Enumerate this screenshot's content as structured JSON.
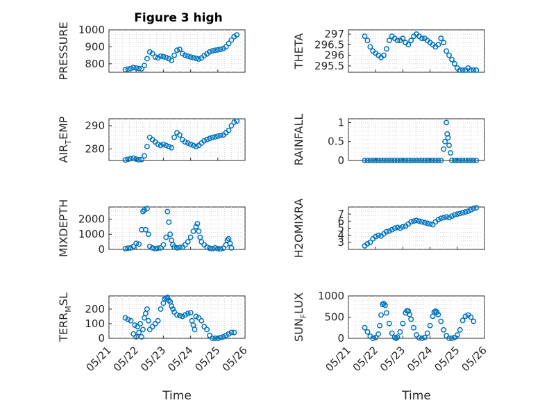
{
  "figure": {
    "title": "Figure 3 high",
    "marker_color": "#0072BD",
    "xtick_labels": [
      "05/21",
      "05/22",
      "05/23",
      "05/24",
      "05/25",
      "05/26"
    ],
    "xlabel": "Time"
  },
  "chart_data": [
    {
      "type": "scatter",
      "ylabel": "PRESSURE",
      "xlim": [
        21,
        26
      ],
      "ylim": [
        750,
        1000
      ],
      "yticks": [
        800,
        900,
        1000
      ],
      "ytick_labels": [
        "800",
        "900",
        "1000"
      ],
      "grid": true,
      "x": [
        21.6,
        21.7,
        21.8,
        21.9,
        22.0,
        22.1,
        22.2,
        22.3,
        22.4,
        22.5,
        22.6,
        22.7,
        22.8,
        22.9,
        23.0,
        23.1,
        23.2,
        23.3,
        23.4,
        23.5,
        23.6,
        23.7,
        23.8,
        23.9,
        24.0,
        24.1,
        24.2,
        24.3,
        24.4,
        24.5,
        24.6,
        24.7,
        24.8,
        24.9,
        25.0,
        25.1,
        25.2,
        25.3,
        25.4,
        25.5,
        25.6,
        25.7
      ],
      "y": [
        765,
        768,
        772,
        778,
        775,
        772,
        770,
        790,
        830,
        870,
        860,
        840,
        835,
        845,
        842,
        838,
        830,
        820,
        850,
        880,
        885,
        860,
        850,
        845,
        840,
        836,
        832,
        828,
        834,
        848,
        858,
        870,
        876,
        880,
        882,
        885,
        890,
        900,
        920,
        940,
        960,
        970
      ]
    },
    {
      "type": "scatter",
      "ylabel": "THETA",
      "xlim": [
        21,
        26
      ],
      "ylim": [
        295.2,
        297.2
      ],
      "yticks": [
        295.5,
        296,
        296.5,
        297
      ],
      "ytick_labels": [
        "295.5",
        "296",
        "296.5",
        "297"
      ],
      "grid": true,
      "x": [
        21.6,
        21.7,
        21.8,
        21.9,
        22.0,
        22.1,
        22.2,
        22.3,
        22.4,
        22.5,
        22.6,
        22.7,
        22.8,
        22.9,
        23.0,
        23.1,
        23.2,
        23.3,
        23.4,
        23.5,
        23.6,
        23.7,
        23.8,
        23.9,
        24.0,
        24.1,
        24.2,
        24.3,
        24.4,
        24.5,
        24.6,
        24.7,
        24.8,
        24.9,
        25.0,
        25.1,
        25.2,
        25.3,
        25.4,
        25.5,
        25.6,
        25.7
      ],
      "y": [
        296.9,
        296.7,
        296.4,
        296.2,
        296.1,
        296.0,
        295.9,
        296.0,
        296.3,
        296.7,
        296.9,
        296.8,
        296.7,
        296.7,
        296.8,
        296.6,
        296.5,
        296.7,
        296.9,
        297.0,
        296.9,
        296.8,
        296.8,
        296.7,
        296.6,
        296.5,
        296.4,
        296.5,
        296.8,
        296.6,
        296.2,
        296.0,
        295.8,
        295.6,
        295.4,
        295.3,
        295.3,
        295.3,
        295.4,
        295.3,
        295.3,
        295.3
      ]
    },
    {
      "type": "scatter",
      "ylabel": "AIR_TEMP",
      "xlim": [
        21,
        26
      ],
      "ylim": [
        275,
        293
      ],
      "yticks": [
        280,
        290
      ],
      "ytick_labels": [
        "280",
        "290"
      ],
      "grid": true,
      "x": [
        21.6,
        21.7,
        21.8,
        21.9,
        22.0,
        22.1,
        22.2,
        22.3,
        22.4,
        22.5,
        22.6,
        22.7,
        22.8,
        22.9,
        23.0,
        23.1,
        23.2,
        23.3,
        23.4,
        23.5,
        23.6,
        23.7,
        23.8,
        23.9,
        24.0,
        24.1,
        24.2,
        24.3,
        24.4,
        24.5,
        24.6,
        24.7,
        24.8,
        24.9,
        25.0,
        25.1,
        25.2,
        25.3,
        25.4,
        25.5,
        25.6,
        25.7
      ],
      "y": [
        275.2,
        275.5,
        275.8,
        276.0,
        275.6,
        275.3,
        275.4,
        277.0,
        281.0,
        285.0,
        284.0,
        283.0,
        282.0,
        281.5,
        282.0,
        281.5,
        281.0,
        280.5,
        285.0,
        287.0,
        286.0,
        284.0,
        283.0,
        282.5,
        282.0,
        281.5,
        281.0,
        281.5,
        282.5,
        283.5,
        284.0,
        284.5,
        285.0,
        285.2,
        285.5,
        285.8,
        286.0,
        287.0,
        288.0,
        290.0,
        291.5,
        292.0
      ]
    },
    {
      "type": "scatter",
      "ylabel": "RAINFALL",
      "xlim": [
        21,
        26
      ],
      "ylim": [
        0,
        1.1
      ],
      "yticks": [
        0,
        0.5,
        1
      ],
      "ytick_labels": [
        "0",
        "0.5",
        "1"
      ],
      "grid": true,
      "x": [
        21.6,
        21.7,
        21.8,
        21.9,
        22.0,
        22.1,
        22.2,
        22.3,
        22.4,
        22.5,
        22.6,
        22.7,
        22.8,
        22.9,
        23.0,
        23.1,
        23.2,
        23.3,
        23.4,
        23.5,
        23.6,
        23.7,
        23.8,
        23.9,
        24.0,
        24.1,
        24.2,
        24.3,
        24.4,
        24.5,
        24.55,
        24.6,
        24.63,
        24.66,
        24.7,
        24.75,
        24.8,
        24.9,
        25.0,
        25.1,
        25.2,
        25.3,
        25.4,
        25.5,
        25.6,
        25.7
      ],
      "y": [
        0,
        0,
        0,
        0,
        0,
        0,
        0,
        0,
        0,
        0,
        0,
        0,
        0,
        0,
        0,
        0,
        0,
        0,
        0,
        0,
        0,
        0,
        0,
        0,
        0,
        0,
        0,
        0,
        0,
        0.3,
        0.5,
        1.0,
        0.7,
        0.6,
        0.4,
        0.2,
        0,
        0,
        0,
        0,
        0,
        0,
        0,
        0,
        0,
        0
      ]
    },
    {
      "type": "scatter",
      "ylabel": "MIXDEPTH",
      "xlim": [
        21,
        26
      ],
      "ylim": [
        0,
        2800
      ],
      "yticks": [
        0,
        1000,
        2000
      ],
      "ytick_labels": [
        "0",
        "1000",
        "2000"
      ],
      "grid": true,
      "x": [
        21.6,
        21.7,
        21.8,
        21.9,
        22.0,
        22.1,
        22.2,
        22.25,
        22.3,
        22.35,
        22.4,
        22.45,
        22.5,
        22.6,
        22.7,
        22.8,
        22.9,
        23.0,
        23.1,
        23.15,
        23.2,
        23.25,
        23.3,
        23.35,
        23.4,
        23.5,
        23.6,
        23.7,
        23.8,
        23.9,
        24.0,
        24.1,
        24.2,
        24.25,
        24.3,
        24.35,
        24.4,
        24.5,
        24.6,
        24.7,
        24.8,
        24.9,
        25.0,
        25.1,
        25.2,
        25.3,
        25.35,
        25.4,
        25.45,
        25.5
      ],
      "y": [
        50,
        80,
        100,
        200,
        400,
        350,
        1300,
        2500,
        2600,
        1300,
        2700,
        1000,
        200,
        100,
        50,
        80,
        100,
        300,
        800,
        2500,
        1800,
        1000,
        600,
        300,
        150,
        100,
        120,
        150,
        300,
        500,
        800,
        1200,
        1500,
        1700,
        1200,
        800,
        500,
        300,
        150,
        80,
        50,
        100,
        50,
        30,
        80,
        300,
        600,
        700,
        400,
        100
      ]
    },
    {
      "type": "scatter",
      "ylabel": "H2OMIXRA",
      "xlim": [
        21,
        26
      ],
      "ylim": [
        2,
        8
      ],
      "yticks": [
        3,
        4,
        5,
        6,
        7
      ],
      "ytick_labels": [
        "3",
        "4",
        "5",
        "6",
        "7"
      ],
      "grid": true,
      "x": [
        21.6,
        21.7,
        21.8,
        21.9,
        22.0,
        22.1,
        22.2,
        22.3,
        22.4,
        22.5,
        22.6,
        22.7,
        22.8,
        22.9,
        23.0,
        23.1,
        23.2,
        23.3,
        23.4,
        23.5,
        23.6,
        23.7,
        23.8,
        23.9,
        24.0,
        24.1,
        24.2,
        24.3,
        24.4,
        24.5,
        24.6,
        24.7,
        24.8,
        24.9,
        25.0,
        25.1,
        25.2,
        25.3,
        25.4,
        25.5,
        25.6,
        25.7
      ],
      "y": [
        2.5,
        2.8,
        3.0,
        3.5,
        3.8,
        4.0,
        3.9,
        4.2,
        4.5,
        4.6,
        4.8,
        5.0,
        5.1,
        5.0,
        5.2,
        5.3,
        5.6,
        5.9,
        6.0,
        6.1,
        6.0,
        5.9,
        5.8,
        5.7,
        5.6,
        5.5,
        5.9,
        6.2,
        6.4,
        6.5,
        6.6,
        6.5,
        6.7,
        6.9,
        7.0,
        7.1,
        7.2,
        7.3,
        7.4,
        7.6,
        7.8,
        7.9
      ]
    },
    {
      "type": "scatter",
      "ylabel": "TERR_MSL",
      "xlim": [
        21,
        26
      ],
      "ylim": [
        0,
        290
      ],
      "yticks": [
        0,
        100,
        200
      ],
      "ytick_labels": [
        "0",
        "100",
        "200"
      ],
      "grid": true,
      "x": [
        21.6,
        21.7,
        21.8,
        21.9,
        21.95,
        22.0,
        22.05,
        22.1,
        22.15,
        22.2,
        22.25,
        22.3,
        22.35,
        22.4,
        22.45,
        22.5,
        22.6,
        22.7,
        22.8,
        22.9,
        23.0,
        23.05,
        23.1,
        23.15,
        23.2,
        23.25,
        23.3,
        23.35,
        23.4,
        23.5,
        23.6,
        23.7,
        23.8,
        23.9,
        24.0,
        24.05,
        24.1,
        24.15,
        24.2,
        24.3,
        24.4,
        24.5,
        24.6,
        24.7,
        24.8,
        24.9,
        25.0,
        25.1,
        25.2,
        25.3,
        25.4,
        25.5,
        25.6
      ],
      "y": [
        140,
        130,
        120,
        30,
        90,
        10,
        80,
        40,
        100,
        10,
        60,
        140,
        170,
        200,
        120,
        60,
        80,
        100,
        120,
        200,
        240,
        270,
        275,
        280,
        260,
        250,
        220,
        200,
        180,
        160,
        155,
        150,
        160,
        170,
        175,
        120,
        90,
        60,
        150,
        140,
        120,
        80,
        60,
        20,
        0,
        0,
        0,
        5,
        10,
        20,
        30,
        40,
        40
      ]
    },
    {
      "type": "scatter",
      "ylabel": "SUN_FLUX",
      "xlim": [
        21,
        26
      ],
      "ylim": [
        0,
        1000
      ],
      "yticks": [
        0,
        500,
        1000
      ],
      "ytick_labels": [
        "0",
        "500",
        "1000"
      ],
      "grid": true,
      "x": [
        21.6,
        21.7,
        21.8,
        21.9,
        22.0,
        22.1,
        22.15,
        22.2,
        22.25,
        22.3,
        22.35,
        22.4,
        22.5,
        22.6,
        22.7,
        22.75,
        22.8,
        22.9,
        23.0,
        23.1,
        23.15,
        23.2,
        23.25,
        23.3,
        23.4,
        23.5,
        23.6,
        23.7,
        23.8,
        23.9,
        24.0,
        24.1,
        24.15,
        24.2,
        24.25,
        24.3,
        24.4,
        24.5,
        24.6,
        24.7,
        24.8,
        24.9,
        25.0,
        25.1,
        25.2,
        25.3,
        25.4,
        25.5,
        25.6
      ],
      "y": [
        250,
        150,
        50,
        0,
        20,
        100,
        300,
        550,
        800,
        820,
        780,
        600,
        350,
        120,
        20,
        0,
        30,
        150,
        350,
        600,
        650,
        640,
        560,
        450,
        250,
        80,
        10,
        0,
        20,
        120,
        300,
        520,
        620,
        640,
        620,
        560,
        400,
        200,
        60,
        0,
        0,
        20,
        80,
        200,
        420,
        520,
        550,
        500,
        400
      ]
    }
  ]
}
